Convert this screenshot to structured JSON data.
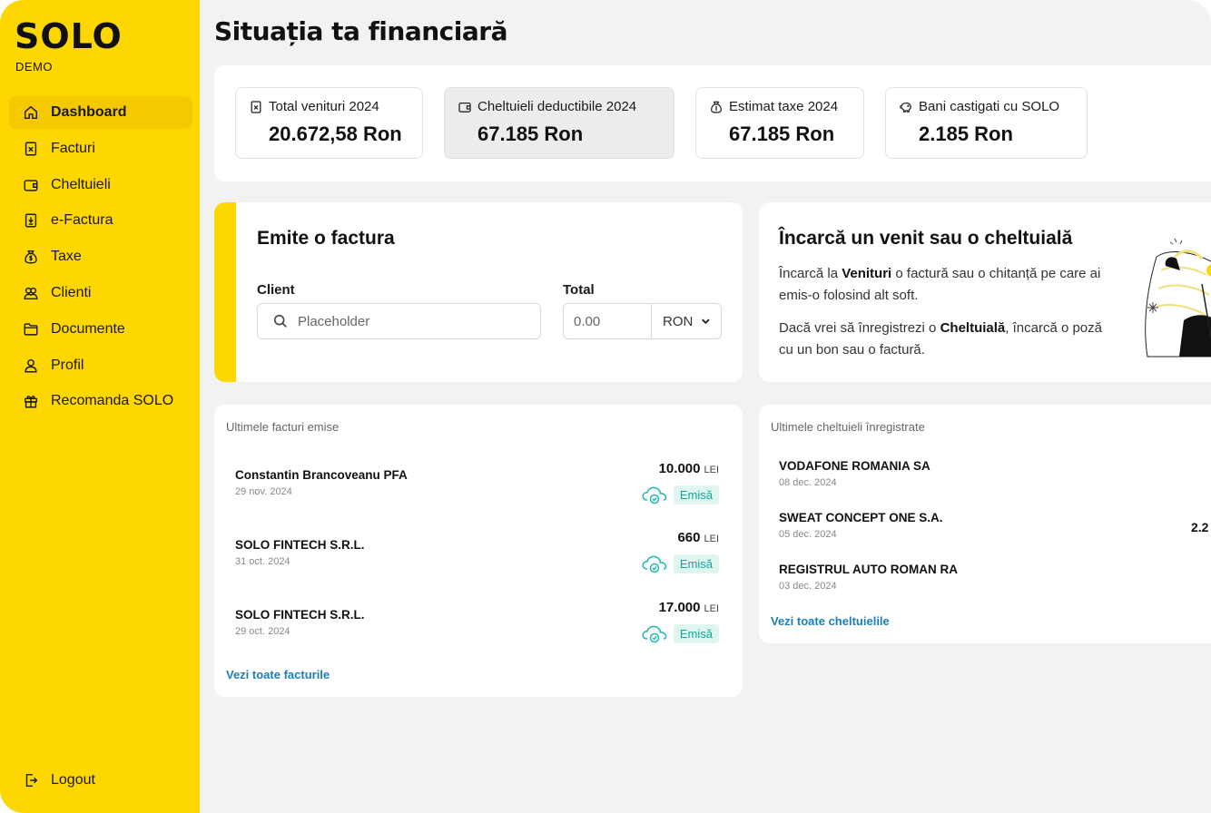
{
  "app": {
    "logo": "SOLO",
    "logo_sub": "DEMO"
  },
  "sidebar": {
    "items": [
      {
        "label": "Dashboard",
        "icon": "home-icon",
        "active": true
      },
      {
        "label": "Facturi",
        "icon": "invoice-icon"
      },
      {
        "label": "Cheltuieli",
        "icon": "wallet-icon"
      },
      {
        "label": "e-Factura",
        "icon": "e-invoice-icon"
      },
      {
        "label": "Taxe",
        "icon": "money-bag-icon"
      },
      {
        "label": "Clienti",
        "icon": "clients-icon"
      },
      {
        "label": "Documente",
        "icon": "folder-icon"
      },
      {
        "label": "Profil",
        "icon": "user-icon"
      },
      {
        "label": "Recomanda SOLO",
        "icon": "gift-icon"
      }
    ],
    "logout": "Logout"
  },
  "page": {
    "title": "Situația ta financiară"
  },
  "stats": [
    {
      "label": "Total venituri 2024",
      "value": "20.672,58 Ron",
      "icon": "invoice-icon"
    },
    {
      "label": "Cheltuieli deductibile 2024",
      "value": "67.185 Ron",
      "icon": "wallet-icon"
    },
    {
      "label": "Estimat taxe 2024",
      "value": "67.185 Ron",
      "icon": "money-bag-icon"
    },
    {
      "label": "Bani castigati cu SOLO",
      "value": "2.185 Ron",
      "icon": "piggy-bank-icon"
    }
  ],
  "invoice_form": {
    "title": "Emite o factura",
    "client_label": "Client",
    "client_placeholder": "Placeholder",
    "total_label": "Total",
    "total_placeholder": "0.00",
    "currency": "RON"
  },
  "upload": {
    "title": "Încarcă un venit sau o cheltuială",
    "p1_a": "Încarcă la ",
    "p1_b": "Venituri",
    "p1_c": " o factură sau o chitanță pe care ai emis-o folosind alt soft.",
    "p2_a": "Dacă vrei să înregistrezi o ",
    "p2_b": "Cheltuială",
    "p2_c": ", încarcă o poză cu un bon sau o factură."
  },
  "invoices": {
    "title": "Ultimele facturi emise",
    "rows": [
      {
        "name": "Constantin Brancoveanu PFA",
        "date": "29 nov. 2024",
        "amount": "10.000",
        "currency": "LEI",
        "status": "Emisă"
      },
      {
        "name": "SOLO FINTECH S.R.L.",
        "date": "31 oct. 2024",
        "amount": "660",
        "currency": "LEI",
        "status": "Emisă"
      },
      {
        "name": "SOLO FINTECH S.R.L.",
        "date": "29 oct. 2024",
        "amount": "17.000",
        "currency": "LEI",
        "status": "Emisă"
      }
    ],
    "link": "Vezi toate facturile"
  },
  "expenses": {
    "title": "Ultimele cheltuieli înregistrate",
    "rows": [
      {
        "name": "VODAFONE ROMANIA SA",
        "date": "08 dec. 2024",
        "amount": ""
      },
      {
        "name": "SWEAT CONCEPT ONE S.A.",
        "date": "05 dec. 2024",
        "amount": "2.2"
      },
      {
        "name": "REGISTRUL AUTO ROMAN RA",
        "date": "03 dec. 2024",
        "amount": ""
      }
    ],
    "link": "Vezi toate cheltuielile"
  },
  "colors": {
    "brand": "#ffd700",
    "accent_link": "#1a7fb5",
    "status_teal": "#14a59b"
  }
}
